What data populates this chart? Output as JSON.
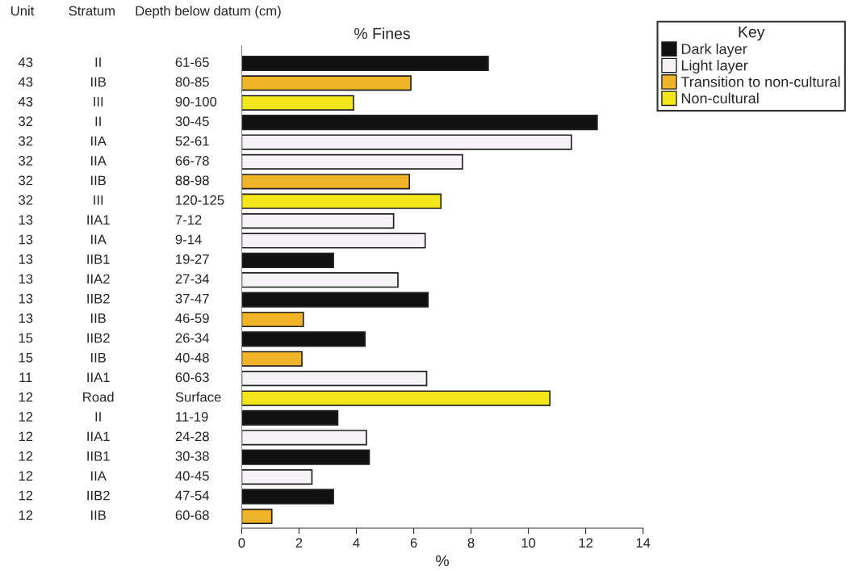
{
  "chart_data": {
    "type": "bar",
    "orientation": "horizontal",
    "title": "% Fines",
    "xlabel": "%",
    "annotations": [
      "Unit",
      "Stratum",
      "Depth below datum (cm)"
    ],
    "categories": [
      "43\tII\t61-65",
      "43\tIIB\t80-85",
      "43\tIII\t90-100",
      "32\tII\t30-45",
      "32\tIIA\t52-61",
      "32\tIIA\t66-78",
      "32\tIIB\t88-98",
      "32\tIII\t120-125",
      "13\tIIA1\t7-12",
      "13\tIIA\t9-14",
      "13\tIIB1\t19-27",
      "13\tIIA2\t27-34",
      "13\tIIB2\t37-47",
      "13\tIIB\t46-59",
      "15\tIIB2\t26-34",
      "15\tIIB\t40-48",
      "11\tIIA1\t60-63",
      "12\tRoad\tSurface",
      "12\tII\t11-19",
      "12\tIIA1\t24-28",
      "12\tIIB1\t30-38",
      "12\tIIA\t40-45",
      "12\tIIB2\t47-54",
      "12\tIIB\t60-68"
    ],
    "series": [
      {
        "name": "Dark layer",
        "color": "#111111",
        "values": [
          8.6,
          null,
          null,
          12.4,
          null,
          null,
          null,
          null,
          null,
          null,
          3.2,
          null,
          6.5,
          null,
          4.3,
          null,
          null,
          null,
          3.35,
          null,
          4.45,
          null,
          3.2,
          null
        ]
      },
      {
        "name": "Light layer",
        "color": "#f5f3f5",
        "values": [
          null,
          null,
          null,
          null,
          11.5,
          7.7,
          null,
          null,
          5.3,
          6.4,
          null,
          5.45,
          null,
          null,
          null,
          null,
          6.45,
          null,
          null,
          4.35,
          null,
          2.45,
          null,
          null
        ]
      },
      {
        "name": "Transition to non-cultural",
        "color": "#f0b429",
        "values": [
          null,
          5.9,
          null,
          null,
          null,
          null,
          5.85,
          null,
          null,
          null,
          null,
          null,
          null,
          2.15,
          null,
          2.1,
          null,
          null,
          null,
          null,
          null,
          null,
          null,
          1.05
        ]
      },
      {
        "name": "Non-cultural",
        "color": "#f2e51a",
        "values": [
          null,
          null,
          3.9,
          null,
          null,
          null,
          null,
          6.95,
          null,
          null,
          null,
          null,
          null,
          null,
          null,
          null,
          null,
          10.75,
          null,
          null,
          null,
          null,
          null,
          null
        ]
      }
    ],
    "legend_title": "Key",
    "legend": "top right",
    "xlim": [
      0,
      14
    ],
    "xticks": [
      0,
      2,
      4,
      6,
      8,
      10,
      12,
      14
    ],
    "grid": false
  }
}
